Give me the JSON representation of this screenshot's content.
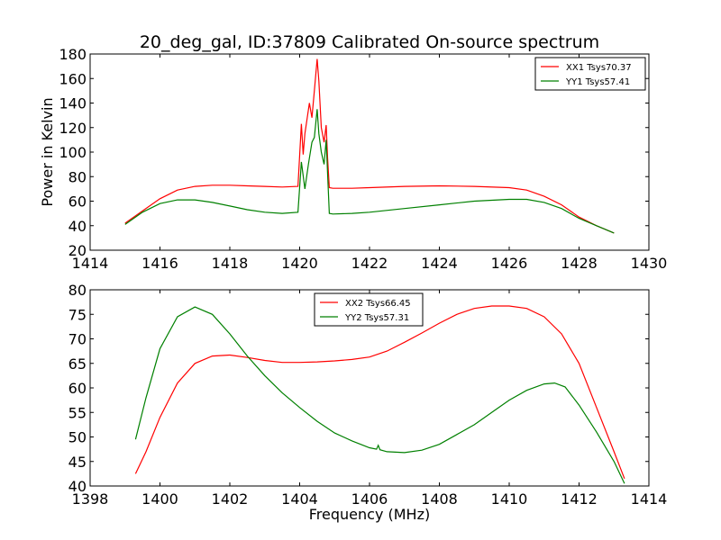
{
  "figure": {
    "title": "20_deg_gal, ID:37809 Calibrated On-source spectrum",
    "bottom_xlabel": "Frequency (MHz)"
  },
  "chart_data": [
    {
      "type": "line",
      "title": "20_deg_gal, ID:37809 Calibrated On-source spectrum",
      "xlabel": "",
      "ylabel": "Power in Kelvin",
      "xlim": [
        1414,
        1430
      ],
      "ylim": [
        20,
        180
      ],
      "xticks": [
        1414,
        1416,
        1418,
        1420,
        1422,
        1424,
        1426,
        1428,
        1430
      ],
      "yticks": [
        20,
        40,
        60,
        80,
        100,
        120,
        140,
        160,
        180
      ],
      "grid": false,
      "legend": "top-right",
      "series": [
        {
          "name": "XX1 Tsys70.37",
          "color": "#ff0000",
          "x": [
            1415.0,
            1415.5,
            1416.0,
            1416.5,
            1417.0,
            1417.5,
            1418.0,
            1418.5,
            1419.0,
            1419.5,
            1419.95,
            1420.05,
            1420.1,
            1420.15,
            1420.2,
            1420.28,
            1420.35,
            1420.42,
            1420.5,
            1420.55,
            1420.62,
            1420.7,
            1420.76,
            1420.8,
            1420.85,
            1420.95,
            1421.5,
            1422.0,
            1423.0,
            1424.0,
            1425.0,
            1426.0,
            1426.5,
            1427.0,
            1427.5,
            1428.0,
            1428.5,
            1429.0
          ],
          "y": [
            42,
            52,
            62,
            69,
            72,
            73,
            73,
            72.5,
            72,
            71.5,
            72,
            123,
            98,
            115,
            125,
            140,
            128,
            150,
            176,
            158,
            120,
            108,
            122,
            95,
            71,
            70.5,
            70.5,
            71,
            72,
            72.5,
            72,
            71,
            69,
            64,
            57,
            47,
            40,
            34
          ]
        },
        {
          "name": "YY1 Tsys57.41",
          "color": "#008000",
          "x": [
            1415.0,
            1415.5,
            1416.0,
            1416.5,
            1417.0,
            1417.5,
            1418.0,
            1418.5,
            1419.0,
            1419.5,
            1419.95,
            1420.05,
            1420.15,
            1420.25,
            1420.35,
            1420.42,
            1420.5,
            1420.55,
            1420.62,
            1420.7,
            1420.76,
            1420.8,
            1420.85,
            1420.95,
            1421.5,
            1422.0,
            1423.0,
            1424.0,
            1425.0,
            1426.0,
            1426.5,
            1427.0,
            1427.5,
            1428.0,
            1428.5,
            1429.0
          ],
          "y": [
            41,
            51,
            58,
            61,
            61,
            59,
            56,
            53,
            51,
            50,
            51,
            92,
            70,
            90,
            108,
            112,
            135,
            115,
            100,
            90,
            110,
            82,
            50,
            49.5,
            50,
            51,
            54,
            57,
            60,
            61.5,
            61.5,
            59,
            54,
            46,
            40,
            34
          ]
        }
      ]
    },
    {
      "type": "line",
      "title": "",
      "xlabel": "Frequency (MHz)",
      "ylabel": "",
      "xlim": [
        1398,
        1414
      ],
      "ylim": [
        40,
        80
      ],
      "xticks": [
        1398,
        1400,
        1402,
        1404,
        1406,
        1408,
        1410,
        1412,
        1414
      ],
      "yticks": [
        40,
        45,
        50,
        55,
        60,
        65,
        70,
        75,
        80
      ],
      "grid": false,
      "legend": "top-center",
      "series": [
        {
          "name": "XX2 Tsys66.45",
          "color": "#ff0000",
          "x": [
            1399.3,
            1399.6,
            1400.0,
            1400.5,
            1401.0,
            1401.5,
            1402.0,
            1402.5,
            1403.0,
            1403.5,
            1404.0,
            1404.5,
            1405.0,
            1405.5,
            1406.0,
            1406.5,
            1407.0,
            1407.5,
            1408.0,
            1408.5,
            1409.0,
            1409.5,
            1410.0,
            1410.5,
            1411.0,
            1411.5,
            1412.0,
            1412.5,
            1413.0,
            1413.3
          ],
          "y": [
            42.5,
            47,
            54,
            61,
            65,
            66.5,
            66.7,
            66.2,
            65.6,
            65.2,
            65.2,
            65.3,
            65.5,
            65.8,
            66.3,
            67.5,
            69.3,
            71.2,
            73.2,
            75,
            76.2,
            76.7,
            76.7,
            76.2,
            74.5,
            71,
            65,
            56,
            47,
            41.5
          ]
        },
        {
          "name": "YY2 Tsys57.31",
          "color": "#008000",
          "x": [
            1399.3,
            1399.6,
            1400.0,
            1400.5,
            1401.0,
            1401.5,
            1402.0,
            1402.5,
            1403.0,
            1403.5,
            1404.0,
            1404.5,
            1405.0,
            1405.5,
            1406.0,
            1406.2,
            1406.25,
            1406.3,
            1406.5,
            1407.0,
            1407.5,
            1408.0,
            1408.5,
            1409.0,
            1409.5,
            1410.0,
            1410.5,
            1411.0,
            1411.3,
            1411.6,
            1412.0,
            1412.5,
            1413.0,
            1413.3
          ],
          "y": [
            49.5,
            58,
            68,
            74.5,
            76.5,
            75,
            71,
            66.5,
            62.5,
            59,
            56,
            53.2,
            50.8,
            49.2,
            47.8,
            47.5,
            48.3,
            47.4,
            47,
            46.8,
            47.3,
            48.5,
            50.5,
            52.5,
            55,
            57.5,
            59.5,
            60.8,
            61,
            60.2,
            56.5,
            51,
            45,
            40.5
          ]
        }
      ]
    }
  ]
}
